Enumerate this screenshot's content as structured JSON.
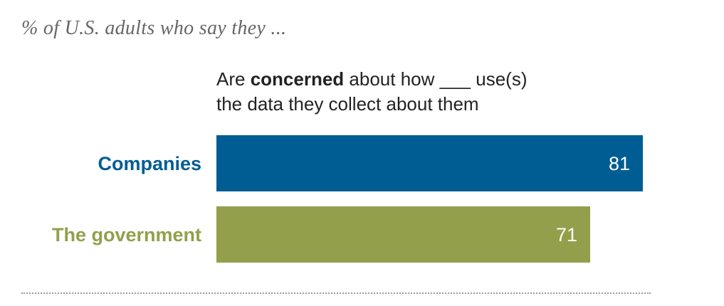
{
  "chart_data": {
    "type": "bar",
    "orientation": "horizontal",
    "subtitle": "% of U.S. adults who say they ...",
    "column_header": {
      "prefix": "Are ",
      "bold": "concerned",
      "middle": " about how ",
      "blank": "___",
      "suffix": " use(s)",
      "line2": "the data they collect about them"
    },
    "categories": [
      "Companies",
      "The government"
    ],
    "values": [
      81,
      71
    ],
    "colors": [
      "#005d93",
      "#939f4b"
    ],
    "xlim": [
      0,
      100
    ]
  }
}
